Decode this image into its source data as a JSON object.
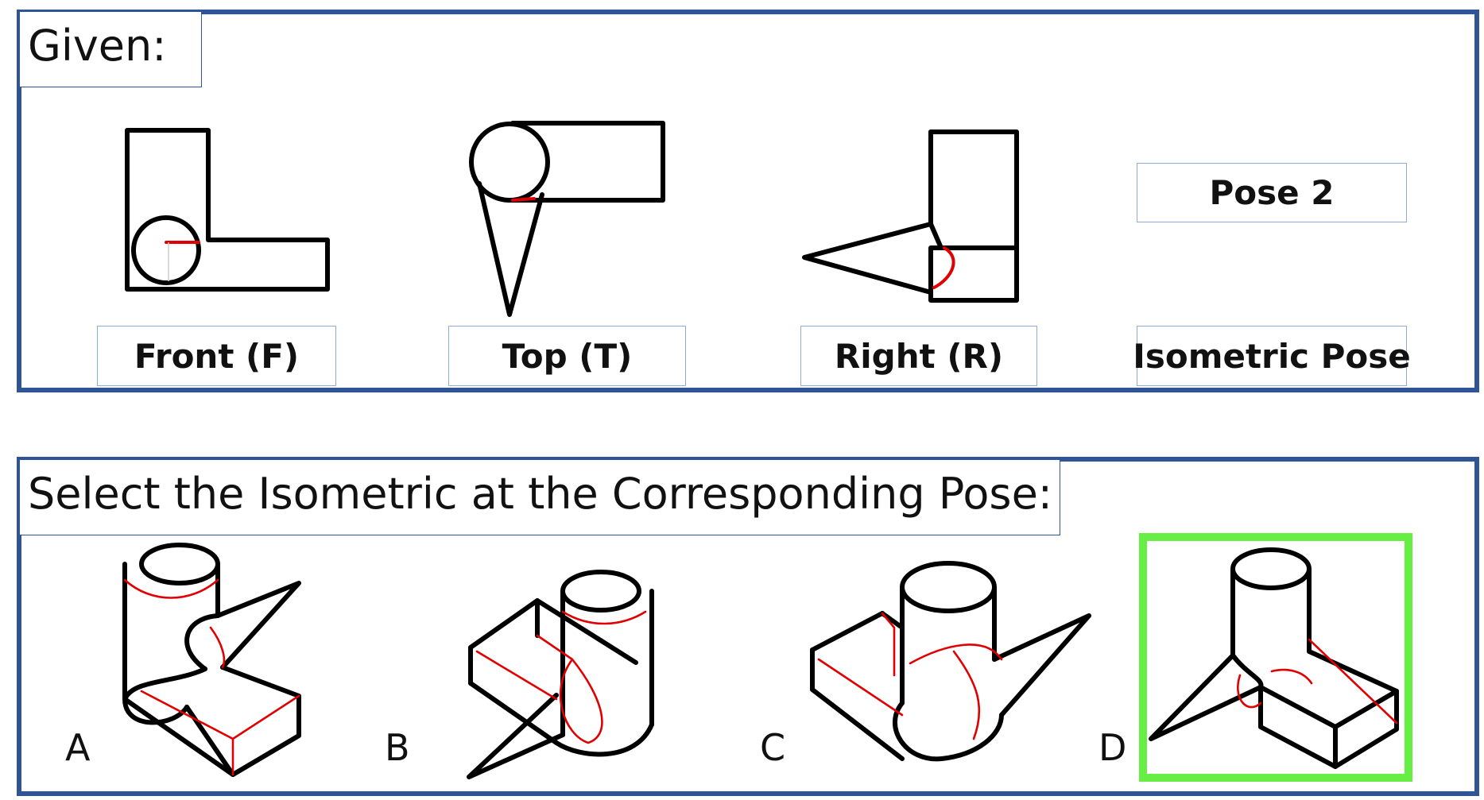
{
  "given": {
    "heading": "Given:",
    "views": [
      {
        "label": "Front (F)"
      },
      {
        "label": "Top (T)"
      },
      {
        "label": "Right (R)"
      }
    ],
    "pose_value": "Pose 2",
    "pose_label": "Isometric Pose"
  },
  "select": {
    "heading": "Select the Isometric at the Corresponding Pose:",
    "options": [
      {
        "letter": "A"
      },
      {
        "letter": "B"
      },
      {
        "letter": "C"
      },
      {
        "letter": "D"
      }
    ]
  },
  "colors": {
    "panel_border": "#2f5597",
    "label_border": "#8faadc",
    "hidden_line": "#e00000",
    "answer_highlight": "#66ee44"
  }
}
